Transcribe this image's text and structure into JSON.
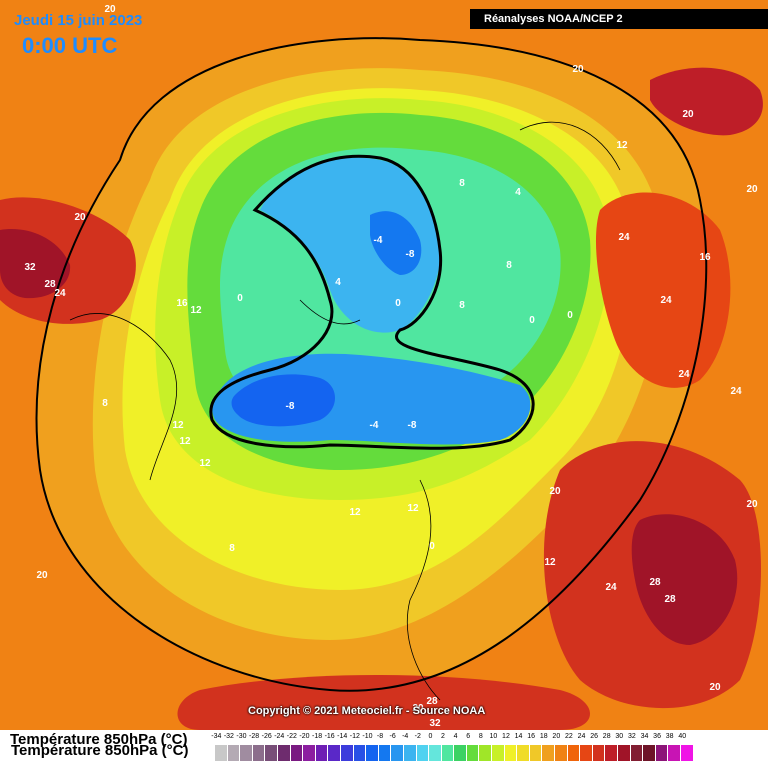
{
  "header": {
    "date": "Jeudi 15 juin 2023",
    "time": "0:00 UTC",
    "source": "Réanalyses NOAA/NCEP 2"
  },
  "footer": {
    "copyright": "Copyright © 2021 Meteociel.fr - Source NOAA",
    "legend_title": "Température 850hPa (°C)"
  },
  "legend": {
    "ticks": [
      "-34",
      "-32",
      "-30",
      "-28",
      "-26",
      "-24",
      "-22",
      "-20",
      "-18",
      "-16",
      "-14",
      "-12",
      "-10",
      "-8",
      "-6",
      "-4",
      "-2",
      "0",
      "2",
      "4",
      "6",
      "8",
      "10",
      "12",
      "14",
      "16",
      "18",
      "20",
      "22",
      "24",
      "26",
      "28",
      "30",
      "32",
      "34",
      "36",
      "38",
      "40"
    ],
    "colors": [
      "#c8c8c8",
      "#b4aab4",
      "#a08ca0",
      "#8c6e8c",
      "#784e78",
      "#6e2c6e",
      "#7a1a82",
      "#8c1ea0",
      "#6e1eb4",
      "#5a28c8",
      "#3c3cdc",
      "#2850e6",
      "#1464f0",
      "#1478f0",
      "#2896f0",
      "#3cb4f0",
      "#50d2f0",
      "#64e6dc",
      "#50e6a0",
      "#3cd264",
      "#64dc3c",
      "#a0e628",
      "#c8f028",
      "#f0f028",
      "#f0dc28",
      "#f0c828",
      "#f0a01e",
      "#f08214",
      "#f0640a",
      "#e64614",
      "#d2321e",
      "#be1e28",
      "#a01428",
      "#821e32",
      "#6e1428",
      "#8c1478",
      "#c814b4",
      "#f014e6"
    ]
  },
  "map": {
    "labels": [
      {
        "text": "20"
      },
      {
        "text": "20"
      },
      {
        "text": "20"
      },
      {
        "text": "20"
      },
      {
        "text": "20"
      },
      {
        "text": "32"
      },
      {
        "text": "28"
      },
      {
        "text": "24"
      },
      {
        "text": "16"
      },
      {
        "text": "12"
      },
      {
        "text": "0"
      },
      {
        "text": "4"
      },
      {
        "text": "0"
      },
      {
        "text": "-4"
      },
      {
        "text": "-8"
      },
      {
        "text": "8"
      },
      {
        "text": "8"
      },
      {
        "text": "4"
      },
      {
        "text": "12"
      },
      {
        "text": "24"
      },
      {
        "text": "16"
      },
      {
        "text": "24"
      },
      {
        "text": "0"
      },
      {
        "text": "0"
      },
      {
        "text": "8"
      },
      {
        "text": "-8"
      },
      {
        "text": "-4"
      },
      {
        "text": "-8"
      },
      {
        "text": "12"
      },
      {
        "text": "12"
      },
      {
        "text": "12"
      },
      {
        "text": "8"
      },
      {
        "text": "24"
      },
      {
        "text": "24"
      },
      {
        "text": "20"
      },
      {
        "text": "12"
      },
      {
        "text": "12"
      },
      {
        "text": "0"
      },
      {
        "text": "12"
      },
      {
        "text": "8"
      },
      {
        "text": "20"
      },
      {
        "text": "20"
      },
      {
        "text": "24"
      },
      {
        "text": "28"
      },
      {
        "text": "28"
      },
      {
        "text": "20"
      },
      {
        "text": "28"
      },
      {
        "text": "32"
      },
      {
        "text": "20"
      }
    ]
  }
}
